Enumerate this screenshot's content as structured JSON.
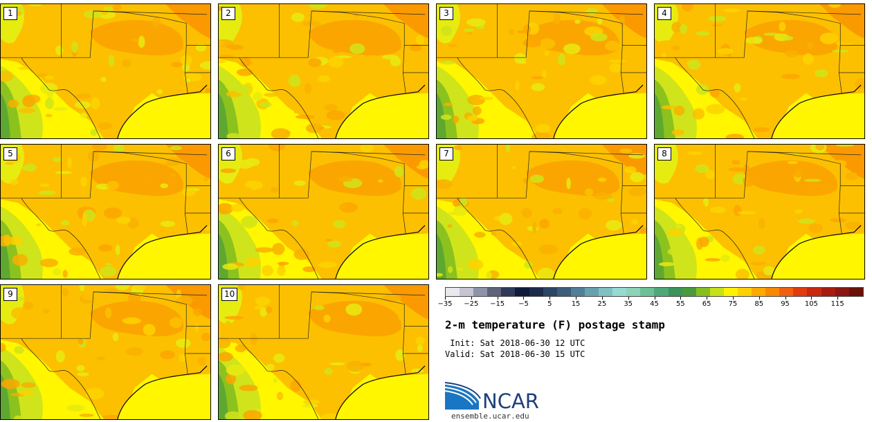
{
  "members": [
    "1",
    "2",
    "3",
    "4",
    "5",
    "6",
    "7",
    "8",
    "9",
    "10"
  ],
  "colorbar": {
    "colors": [
      "#e8e8ee",
      "#c4c4d2",
      "#8e93a6",
      "#5d6378",
      "#2e3a56",
      "#101b3a",
      "#1c2b4b",
      "#2c4566",
      "#3c5d7c",
      "#507f96",
      "#68a1ae",
      "#80c0c2",
      "#96dbd2",
      "#8ed3b8",
      "#6cc098",
      "#4ea87a",
      "#3c935c",
      "#4a9a3c",
      "#86c020",
      "#c8e018",
      "#fff200",
      "#fdd000",
      "#fcaa00",
      "#f88800",
      "#f06010",
      "#e03c10",
      "#c82810",
      "#a81c10",
      "#8a1810",
      "#6a1208"
    ],
    "tick_labels": [
      "−35",
      "−25",
      "−15",
      "−5",
      "5",
      "15",
      "25",
      "35",
      "45",
      "55",
      "65",
      "75",
      "85",
      "95",
      "105",
      "115"
    ],
    "min": -35,
    "max": 125,
    "tick_values": [
      -35,
      -25,
      -15,
      -5,
      5,
      15,
      25,
      35,
      45,
      55,
      65,
      75,
      85,
      95,
      105,
      115
    ]
  },
  "title": "2-m temperature (F) postage stamp",
  "init": " Init: Sat 2018-06-30 12 UTC",
  "valid": "Valid: Sat 2018-06-30 15 UTC",
  "logo": {
    "text": "NCAR",
    "url": "ensemble.ucar.edu"
  }
}
